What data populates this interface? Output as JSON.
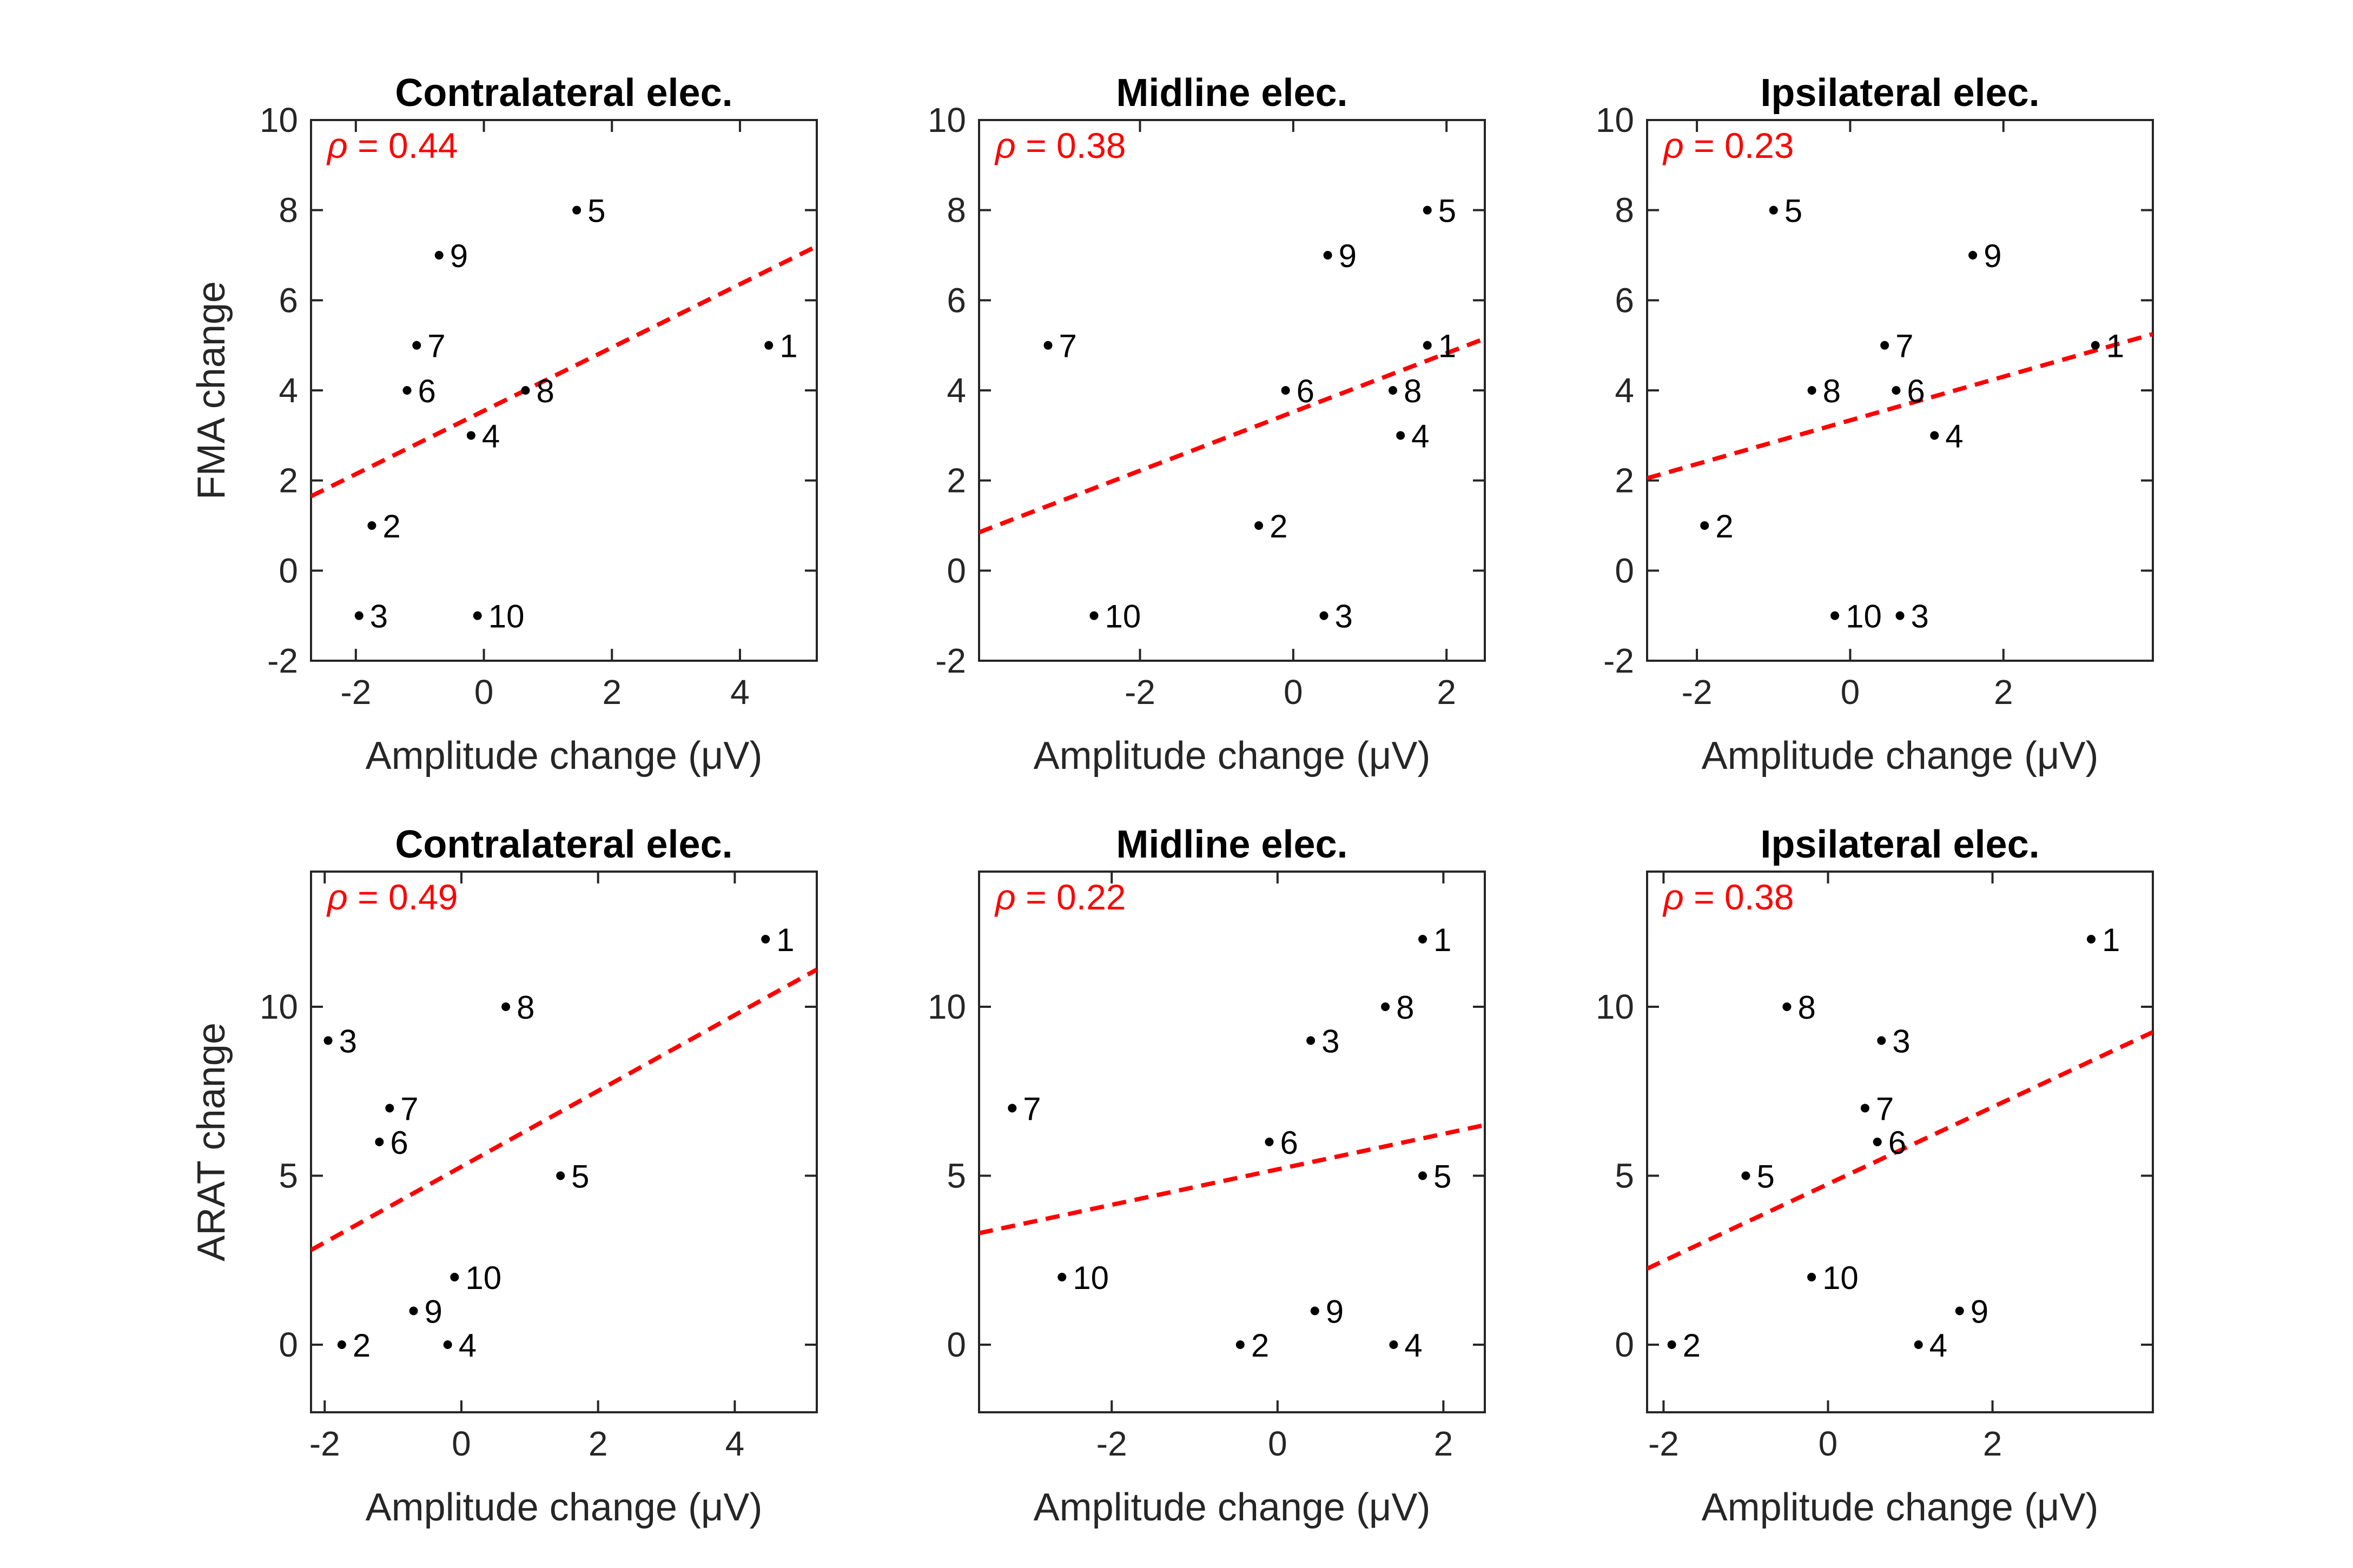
{
  "figure": {
    "colors": {
      "points": "#000000",
      "trend": "#ff0000",
      "rho": "#ff0000",
      "axes": "#262626"
    },
    "rho_symbol": "ρ"
  },
  "chart_data": [
    {
      "type": "scatter",
      "title": "Contralateral elec.",
      "xlabel": "Amplitude change (μV)",
      "ylabel": "FMA change",
      "xlim": [
        -2.7,
        5.2
      ],
      "ylim": [
        -2,
        10
      ],
      "xticks": [
        -2,
        0,
        2,
        4
      ],
      "yticks": [
        -2,
        0,
        2,
        4,
        6,
        8,
        10
      ],
      "rho": "0.44",
      "trend": {
        "x": [
          -2.7,
          5.2
        ],
        "y": [
          1.65,
          7.2
        ]
      },
      "points": [
        {
          "label": "1",
          "x": 4.45,
          "y": 5
        },
        {
          "label": "2",
          "x": -1.75,
          "y": 1
        },
        {
          "label": "3",
          "x": -1.95,
          "y": -1
        },
        {
          "label": "4",
          "x": -0.2,
          "y": 3
        },
        {
          "label": "5",
          "x": 1.45,
          "y": 8
        },
        {
          "label": "6",
          "x": -1.2,
          "y": 4
        },
        {
          "label": "7",
          "x": -1.05,
          "y": 5
        },
        {
          "label": "8",
          "x": 0.65,
          "y": 4
        },
        {
          "label": "9",
          "x": -0.7,
          "y": 7
        },
        {
          "label": "10",
          "x": -0.1,
          "y": -1
        }
      ]
    },
    {
      "type": "scatter",
      "title": "Midline elec.",
      "xlabel": "Amplitude change (μV)",
      "ylabel": "",
      "xlim": [
        -4.1,
        2.5
      ],
      "ylim": [
        -2,
        10
      ],
      "xticks": [
        -2,
        0,
        2
      ],
      "yticks": [
        -2,
        0,
        2,
        4,
        6,
        8,
        10
      ],
      "rho": "0.38",
      "trend": {
        "x": [
          -4.1,
          2.5
        ],
        "y": [
          0.85,
          5.15
        ]
      },
      "points": [
        {
          "label": "1",
          "x": 1.75,
          "y": 5
        },
        {
          "label": "2",
          "x": -0.45,
          "y": 1
        },
        {
          "label": "3",
          "x": 0.4,
          "y": -1
        },
        {
          "label": "4",
          "x": 1.4,
          "y": 3
        },
        {
          "label": "5",
          "x": 1.75,
          "y": 8
        },
        {
          "label": "6",
          "x": -0.1,
          "y": 4
        },
        {
          "label": "7",
          "x": -3.2,
          "y": 5
        },
        {
          "label": "8",
          "x": 1.3,
          "y": 4
        },
        {
          "label": "9",
          "x": 0.45,
          "y": 7
        },
        {
          "label": "10",
          "x": -2.6,
          "y": -1
        }
      ]
    },
    {
      "type": "scatter",
      "title": "Ipsilateral elec.",
      "xlabel": "Amplitude change (μV)",
      "ylabel": "",
      "xlim": [
        -2.65,
        3.95
      ],
      "ylim": [
        -2,
        10
      ],
      "xticks": [
        -2,
        0,
        2
      ],
      "yticks": [
        -2,
        0,
        2,
        4,
        6,
        8,
        10
      ],
      "rho": "0.23",
      "trend": {
        "x": [
          -2.65,
          3.95
        ],
        "y": [
          2.05,
          5.25
        ]
      },
      "points": [
        {
          "label": "1",
          "x": 3.2,
          "y": 5
        },
        {
          "label": "2",
          "x": -1.9,
          "y": 1
        },
        {
          "label": "3",
          "x": 0.65,
          "y": -1
        },
        {
          "label": "4",
          "x": 1.1,
          "y": 3
        },
        {
          "label": "5",
          "x": -1.0,
          "y": 8
        },
        {
          "label": "6",
          "x": 0.6,
          "y": 4
        },
        {
          "label": "7",
          "x": 0.45,
          "y": 5
        },
        {
          "label": "8",
          "x": -0.5,
          "y": 4
        },
        {
          "label": "9",
          "x": 1.6,
          "y": 7
        },
        {
          "label": "10",
          "x": -0.2,
          "y": -1
        }
      ]
    },
    {
      "type": "scatter",
      "title": "Contralateral elec.",
      "xlabel": "Amplitude change (μV)",
      "ylabel": "ARAT change",
      "xlim": [
        -2.2,
        5.2
      ],
      "ylim": [
        -2,
        14
      ],
      "xticks": [
        -2,
        0,
        2,
        4
      ],
      "yticks": [
        0,
        5,
        10
      ],
      "rho": "0.49",
      "trend": {
        "x": [
          -2.2,
          5.2
        ],
        "y": [
          2.8,
          11.1
        ]
      },
      "points": [
        {
          "label": "1",
          "x": 4.45,
          "y": 12
        },
        {
          "label": "2",
          "x": -1.75,
          "y": 0
        },
        {
          "label": "3",
          "x": -1.95,
          "y": 9
        },
        {
          "label": "4",
          "x": -0.2,
          "y": 0
        },
        {
          "label": "5",
          "x": 1.45,
          "y": 5
        },
        {
          "label": "6",
          "x": -1.2,
          "y": 6
        },
        {
          "label": "7",
          "x": -1.05,
          "y": 7
        },
        {
          "label": "8",
          "x": 0.65,
          "y": 10
        },
        {
          "label": "9",
          "x": -0.7,
          "y": 1
        },
        {
          "label": "10",
          "x": -0.1,
          "y": 2
        }
      ]
    },
    {
      "type": "scatter",
      "title": "Midline elec.",
      "xlabel": "Amplitude change (μV)",
      "ylabel": "",
      "xlim": [
        -3.6,
        2.5
      ],
      "ylim": [
        -2,
        14
      ],
      "xticks": [
        -2,
        0,
        2
      ],
      "yticks": [
        0,
        5,
        10
      ],
      "rho": "0.22",
      "trend": {
        "x": [
          -3.6,
          2.5
        ],
        "y": [
          3.3,
          6.5
        ]
      },
      "points": [
        {
          "label": "1",
          "x": 1.75,
          "y": 12
        },
        {
          "label": "2",
          "x": -0.45,
          "y": 0
        },
        {
          "label": "3",
          "x": 0.4,
          "y": 9
        },
        {
          "label": "4",
          "x": 1.4,
          "y": 0
        },
        {
          "label": "5",
          "x": 1.75,
          "y": 5
        },
        {
          "label": "6",
          "x": -0.1,
          "y": 6
        },
        {
          "label": "7",
          "x": -3.2,
          "y": 7
        },
        {
          "label": "8",
          "x": 1.3,
          "y": 10
        },
        {
          "label": "9",
          "x": 0.45,
          "y": 1
        },
        {
          "label": "10",
          "x": -2.6,
          "y": 2
        }
      ]
    },
    {
      "type": "scatter",
      "title": "Ipsilateral elec.",
      "xlabel": "Amplitude change (μV)",
      "ylabel": "",
      "xlim": [
        -2.2,
        3.95
      ],
      "ylim": [
        -2,
        14
      ],
      "xticks": [
        -2,
        0,
        2
      ],
      "yticks": [
        0,
        5,
        10
      ],
      "rho": "0.38",
      "trend": {
        "x": [
          -2.2,
          3.95
        ],
        "y": [
          2.25,
          9.25
        ]
      },
      "points": [
        {
          "label": "1",
          "x": 3.2,
          "y": 12
        },
        {
          "label": "2",
          "x": -1.9,
          "y": 0
        },
        {
          "label": "3",
          "x": 0.65,
          "y": 9
        },
        {
          "label": "4",
          "x": 1.1,
          "y": 0
        },
        {
          "label": "5",
          "x": -1.0,
          "y": 5
        },
        {
          "label": "6",
          "x": 0.6,
          "y": 6
        },
        {
          "label": "7",
          "x": 0.45,
          "y": 7
        },
        {
          "label": "8",
          "x": -0.5,
          "y": 10
        },
        {
          "label": "9",
          "x": 1.6,
          "y": 1
        },
        {
          "label": "10",
          "x": -0.2,
          "y": 2
        }
      ]
    }
  ]
}
